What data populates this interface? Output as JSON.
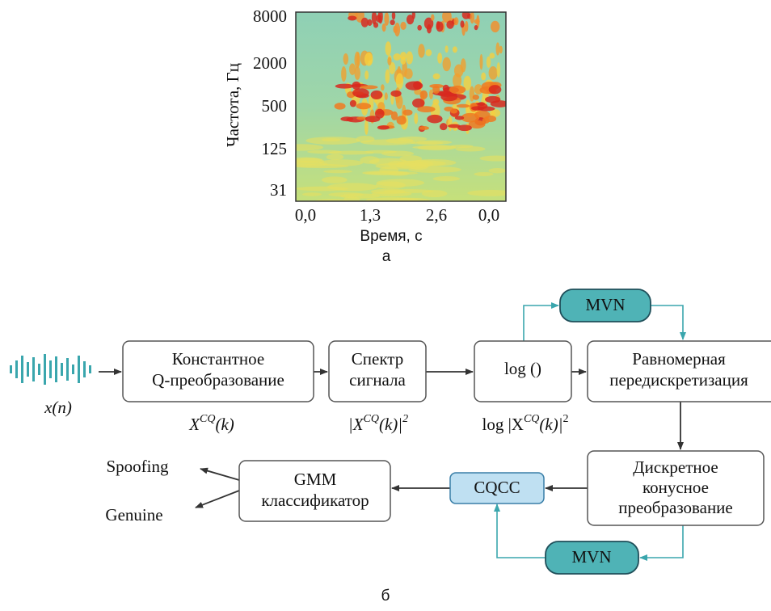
{
  "spectrogram": {
    "y_label": "Частота, Гц",
    "x_label": "Время, с",
    "y_ticks": [
      "8000",
      "2000",
      "500",
      "125",
      "31"
    ],
    "x_ticks": [
      "0,0",
      "1,3",
      "2,6",
      "0,0"
    ],
    "caption": "а"
  },
  "diagram": {
    "input_label": "x(n)",
    "nodes": [
      {
        "lines": [
          "Константное",
          "Q-преобразование"
        ]
      },
      {
        "lines": [
          "Спектр",
          "сигнала"
        ]
      },
      {
        "lines": [
          "log ()"
        ]
      },
      {
        "lines": [
          "Равномерная",
          "передискретизация"
        ]
      },
      {
        "lines": [
          "Дискретное",
          "конусное",
          "преобразование"
        ]
      },
      {
        "lines": [
          "CQCC"
        ]
      },
      {
        "lines": [
          "GMM",
          "классификатор"
        ]
      },
      {
        "lines": [
          "MVN"
        ]
      },
      {
        "lines": [
          "MVN"
        ]
      }
    ],
    "annotations": [
      [
        "X",
        "CQ",
        "(k)"
      ],
      [
        "|X",
        "CQ",
        "(k)|",
        "2"
      ],
      [
        "log |X",
        "CQ",
        "(k)|",
        "2"
      ]
    ],
    "outputs": [
      "Spoofing",
      "Genuine"
    ],
    "caption": "б"
  }
}
